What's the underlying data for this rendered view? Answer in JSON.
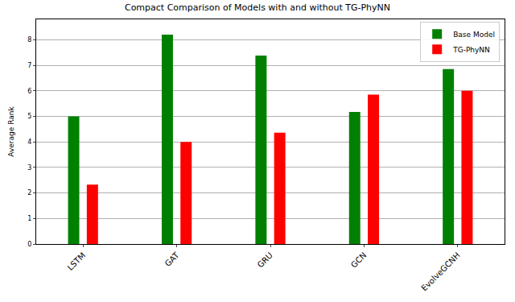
{
  "chart_data": {
    "type": "bar",
    "title": "Compact Comparison of Models with and without TG-PhyNN",
    "y_label": "Average Rank",
    "categories": [
      "LSTM",
      "GAT",
      "GRU",
      "GCN",
      "EvolveGCNH"
    ],
    "series": [
      {
        "name": "Base Model",
        "color": "#008000",
        "values": [
          5.0,
          8.2,
          7.38,
          5.17,
          6.85
        ]
      },
      {
        "name": "TG-PhyNN",
        "color": "#ff0000",
        "values": [
          2.33,
          4.0,
          4.36,
          5.85,
          6.0
        ]
      }
    ],
    "ylim": [
      0,
      8.8
    ],
    "yticks": [
      0,
      1,
      2,
      3,
      4,
      5,
      6,
      7,
      8
    ],
    "grid": true,
    "legend": "upper right"
  }
}
